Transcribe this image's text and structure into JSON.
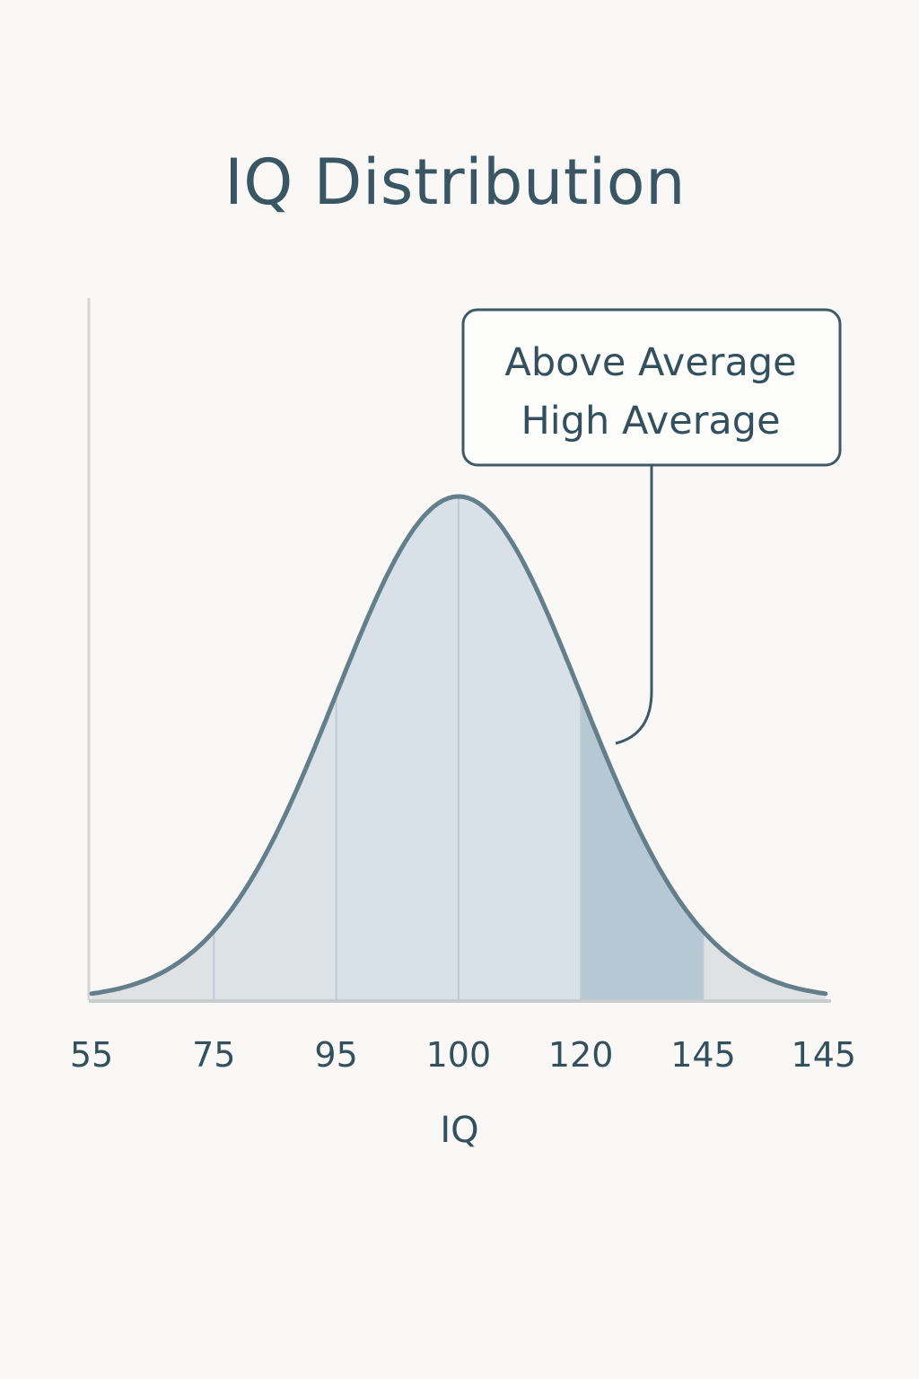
{
  "chart_data": {
    "type": "area",
    "title": "IQ Distribution",
    "xlabel": "IQ",
    "ylabel": "",
    "x_tick_labels": [
      "55",
      "75",
      "95",
      "100",
      "120",
      "145",
      "145"
    ],
    "curve": {
      "shape": "normal",
      "mean_tick_index": 3,
      "sd_ticks": 1
    },
    "regions": [
      {
        "from_tick": 0,
        "to_tick": 1,
        "color": "#dfe2e5"
      },
      {
        "from_tick": 1,
        "to_tick": 2,
        "color": "#dbe2e8"
      },
      {
        "from_tick": 2,
        "to_tick": 3,
        "color": "#d9e1e8"
      },
      {
        "from_tick": 3,
        "to_tick": 4,
        "color": "#d9e1e8"
      },
      {
        "from_tick": 4,
        "to_tick": 5,
        "color": "#b5c8d3",
        "highlighted": true
      },
      {
        "from_tick": 5,
        "to_tick": 6,
        "color": "#dfe2e5"
      }
    ],
    "annotation": {
      "lines": [
        "Above Average",
        "High Average"
      ],
      "target_region_index": 4
    },
    "grid": false,
    "colors": {
      "curve": "#647e8a",
      "axis": "#c9cccd",
      "text": "#34505d",
      "divider": "#bfcad2"
    }
  }
}
